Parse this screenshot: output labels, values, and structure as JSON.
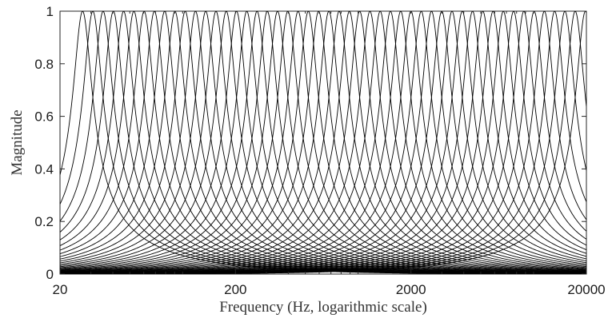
{
  "chart_data": {
    "type": "line",
    "title": "",
    "xlabel": "Frequency (Hz, logarithmic scale)",
    "ylabel": "Magnitude",
    "x_scale": "log",
    "xlim": [
      20,
      20000
    ],
    "ylim": [
      0,
      1
    ],
    "x_ticks": [
      20,
      200,
      2000,
      20000
    ],
    "x_tick_labels": [
      "20",
      "200",
      "2000",
      "20000"
    ],
    "y_ticks": [
      0,
      0.2,
      0.4,
      0.6,
      0.8,
      1
    ],
    "y_tick_labels": [
      "0",
      "0.2",
      "0.4",
      "0.6",
      "0.8",
      "1"
    ],
    "grid": false,
    "legend": "none",
    "line_color": "#000000",
    "filter_bank": {
      "num_filters": 50,
      "first_center_hz": 26.9,
      "last_center_hz": 19750,
      "spacing": "logarithmic",
      "peak_magnitude": 1,
      "shape": "resonant bandpass"
    },
    "series": []
  }
}
